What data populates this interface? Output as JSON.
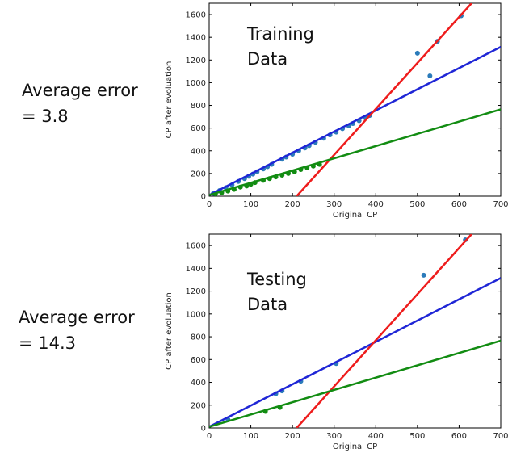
{
  "labels": {
    "training_error": [
      "Average error",
      "= 3.8"
    ],
    "testing_error": [
      "Average error",
      "= 14.3"
    ]
  },
  "colors": {
    "points": "#2b7bba",
    "blue_line": "#1f26d6",
    "red_line": "#ee1c1c",
    "green_line": "#128c12"
  },
  "chart_data": [
    {
      "type": "scatter",
      "inset_text": [
        "Training",
        "Data"
      ],
      "xlabel": "Original CP",
      "ylabel": "CP after evoluation",
      "xlim": [
        0,
        700
      ],
      "ylim": [
        0,
        1700
      ],
      "xticks": [
        0,
        100,
        200,
        300,
        400,
        500,
        600,
        700
      ],
      "yticks": [
        0,
        200,
        400,
        600,
        800,
        1000,
        1200,
        1400,
        1600
      ],
      "lines": [
        {
          "color": "blue",
          "x": [
            0,
            700
          ],
          "y": [
            10,
            1315
          ]
        },
        {
          "color": "red",
          "x": [
            210,
            630
          ],
          "y": [
            0,
            1700
          ]
        },
        {
          "color": "green",
          "x": [
            0,
            700
          ],
          "y": [
            10,
            765
          ]
        }
      ],
      "series": [
        {
          "color": "blue",
          "points": [
            [
              10,
              25
            ],
            [
              25,
              50
            ],
            [
              40,
              75
            ],
            [
              55,
              100
            ],
            [
              70,
              130
            ],
            [
              85,
              155
            ],
            [
              95,
              175
            ],
            [
              105,
              195
            ],
            [
              115,
              215
            ],
            [
              130,
              240
            ],
            [
              140,
              260
            ],
            [
              150,
              280
            ],
            [
              175,
              325
            ],
            [
              185,
              345
            ],
            [
              200,
              370
            ],
            [
              215,
              400
            ],
            [
              230,
              425
            ],
            [
              240,
              445
            ],
            [
              255,
              475
            ],
            [
              275,
              510
            ],
            [
              290,
              540
            ],
            [
              305,
              565
            ],
            [
              320,
              595
            ],
            [
              335,
              620
            ],
            [
              345,
              640
            ],
            [
              360,
              665
            ],
            [
              375,
              690
            ],
            [
              385,
              710
            ],
            [
              500,
              1260
            ],
            [
              530,
              1060
            ],
            [
              548,
              1365
            ],
            [
              605,
              1590
            ]
          ]
        },
        {
          "color": "green",
          "points": [
            [
              15,
              20
            ],
            [
              30,
              30
            ],
            [
              45,
              45
            ],
            [
              60,
              60
            ],
            [
              75,
              80
            ],
            [
              90,
              90
            ],
            [
              100,
              105
            ],
            [
              110,
              120
            ],
            [
              130,
              140
            ],
            [
              145,
              155
            ],
            [
              160,
              170
            ],
            [
              175,
              185
            ],
            [
              190,
              200
            ],
            [
              205,
              215
            ],
            [
              220,
              235
            ],
            [
              235,
              250
            ],
            [
              250,
              265
            ],
            [
              265,
              280
            ]
          ]
        }
      ]
    },
    {
      "type": "scatter",
      "inset_text": [
        "Testing",
        "Data"
      ],
      "xlabel": "Original CP",
      "ylabel": "CP after evoluation",
      "xlim": [
        0,
        700
      ],
      "ylim": [
        0,
        1700
      ],
      "xticks": [
        0,
        100,
        200,
        300,
        400,
        500,
        600,
        700
      ],
      "yticks": [
        0,
        200,
        400,
        600,
        800,
        1000,
        1200,
        1400,
        1600
      ],
      "lines": [
        {
          "color": "blue",
          "x": [
            0,
            700
          ],
          "y": [
            10,
            1315
          ]
        },
        {
          "color": "red",
          "x": [
            210,
            630
          ],
          "y": [
            0,
            1700
          ]
        },
        {
          "color": "green",
          "x": [
            0,
            700
          ],
          "y": [
            10,
            765
          ]
        }
      ],
      "series": [
        {
          "color": "blue",
          "points": [
            [
              45,
              75
            ],
            [
              160,
              300
            ],
            [
              175,
              325
            ],
            [
              220,
              410
            ],
            [
              305,
              565
            ],
            [
              515,
              1340
            ],
            [
              615,
              1650
            ]
          ]
        },
        {
          "color": "green",
          "points": [
            [
              135,
              145
            ],
            [
              170,
              180
            ]
          ]
        }
      ]
    }
  ]
}
